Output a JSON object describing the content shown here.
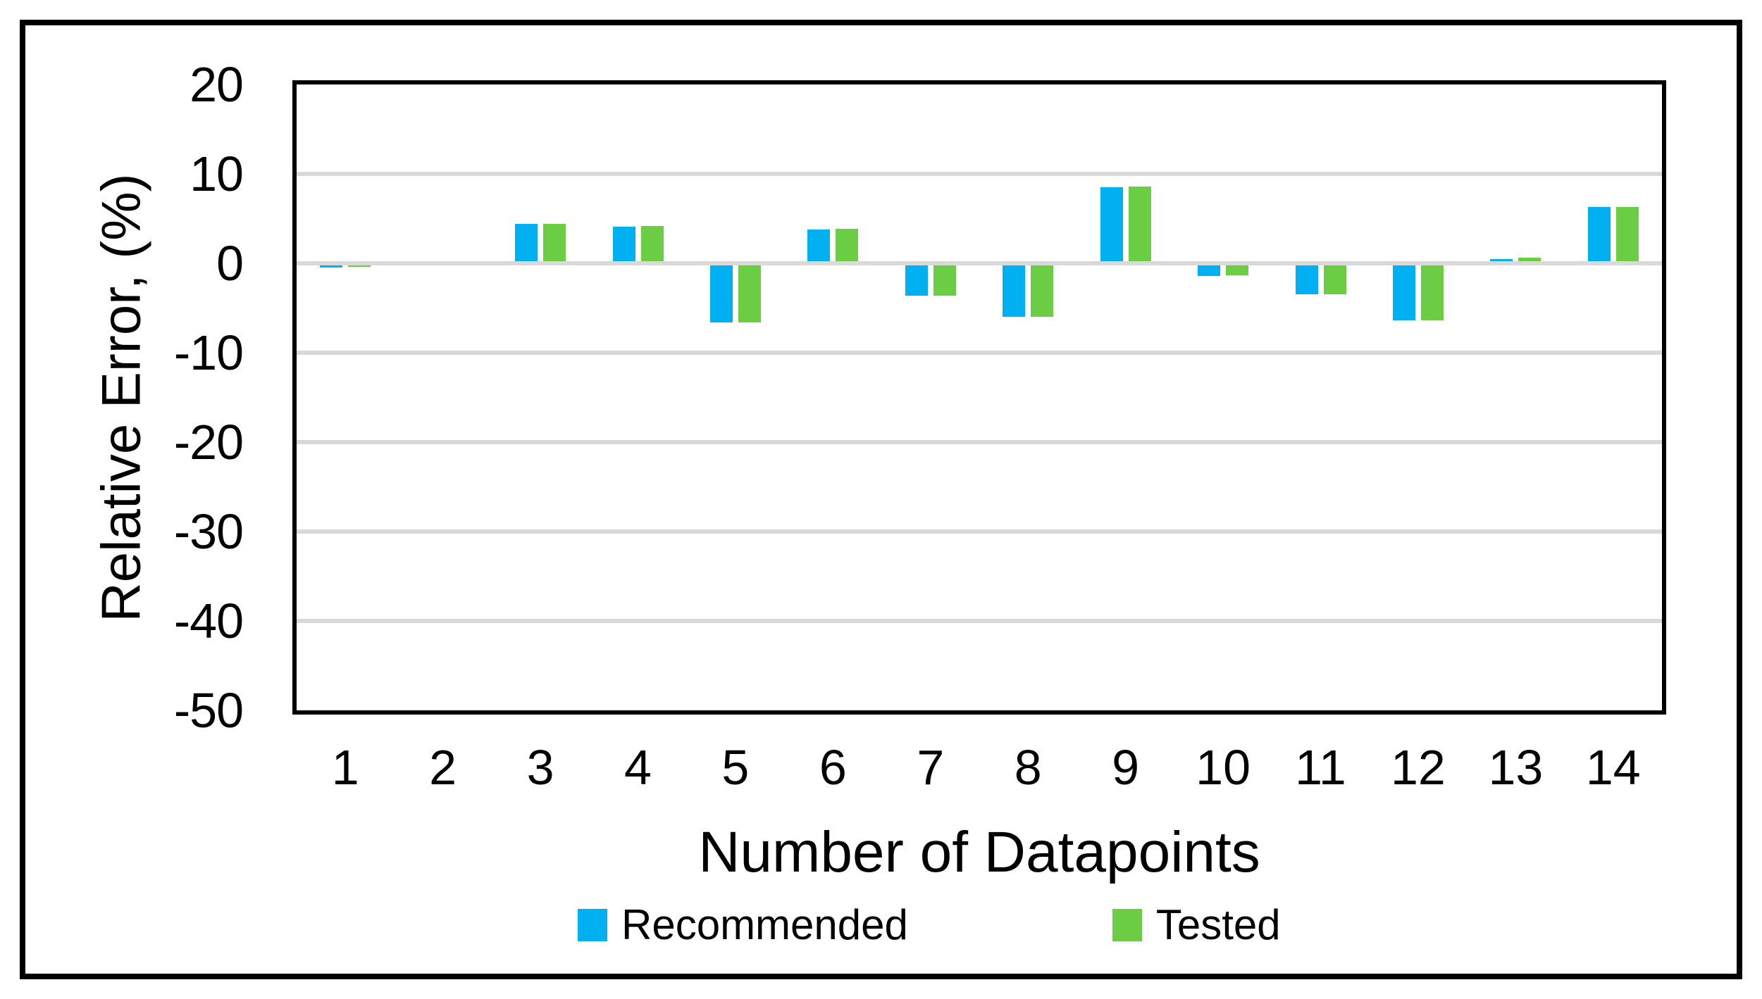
{
  "chart": {
    "y_axis_title": "Relative Error, (%)",
    "x_axis_title": "Number of Datapoints"
  },
  "chart_data": {
    "type": "bar",
    "title": "",
    "xlabel": "Number of Datapoints",
    "ylabel": "Relative Error, (%)",
    "categories": [
      "1",
      "2",
      "3",
      "4",
      "5",
      "6",
      "7",
      "8",
      "9",
      "10",
      "11",
      "12",
      "13",
      "14"
    ],
    "series": [
      {
        "name": "Recommended",
        "color": "#00B0F0",
        "values": [
          -0.5,
          0,
          4.4,
          4.1,
          -6.6,
          3.8,
          -3.6,
          -6.0,
          8.5,
          -1.4,
          -3.5,
          -6.4,
          0.5,
          6.3
        ]
      },
      {
        "name": "Tested",
        "color": "#6BCD43",
        "values": [
          -0.4,
          0,
          4.4,
          4.2,
          -6.6,
          3.9,
          -3.6,
          -6.0,
          8.6,
          -1.3,
          -3.5,
          -6.4,
          0.6,
          6.3
        ]
      }
    ],
    "ylim": [
      -50,
      20
    ],
    "yticks": [
      20,
      10,
      0,
      -10,
      -20,
      -30,
      -40,
      -50
    ],
    "grid": true,
    "gridline_color": "#D9D9D9",
    "axis_color": "#000000",
    "legend_position": "bottom",
    "legend": [
      "Recommended",
      "Tested"
    ]
  }
}
